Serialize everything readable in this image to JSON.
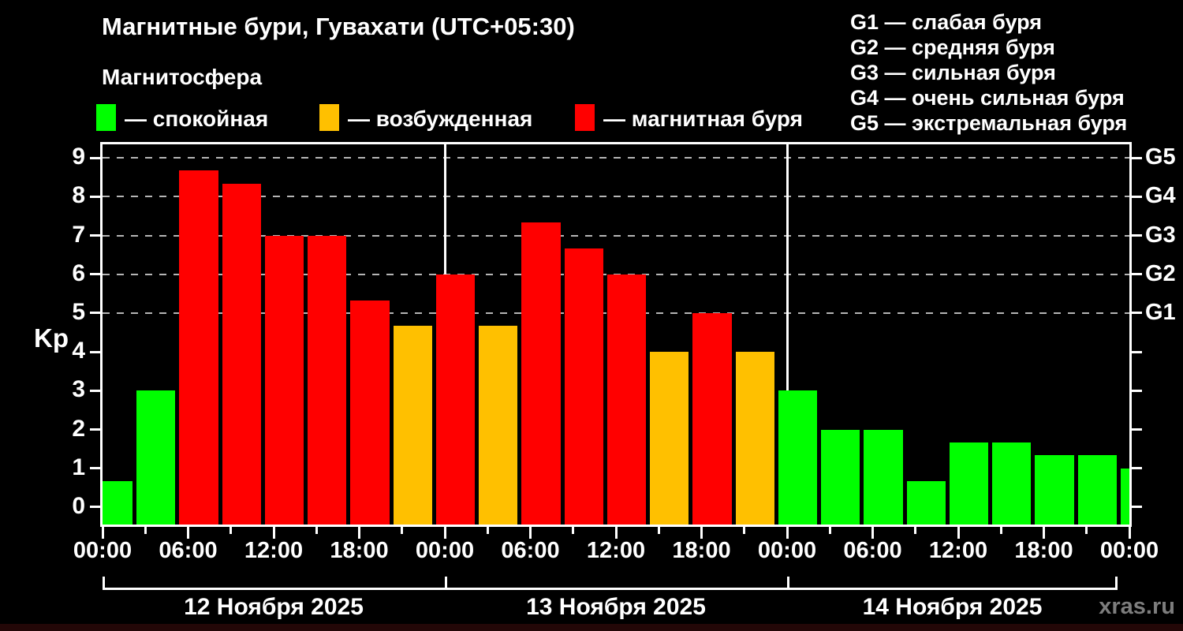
{
  "page": {
    "title": "Магнитные бури, Гувахати (UTC+05:30)",
    "subtitle": "Магнитосфера",
    "watermark": "xras.ru"
  },
  "legend": {
    "quiet": {
      "label": "— спокойная",
      "color": "#00ff00"
    },
    "excited": {
      "label": "— возбужденная",
      "color": "#ffc000"
    },
    "storm": {
      "label": "— магнитная буря",
      "color": "#ff0000"
    }
  },
  "storm_levels": [
    {
      "label": "G1 — слабая буря"
    },
    {
      "label": "G2 — средняя буря"
    },
    {
      "label": "G3 — сильная буря"
    },
    {
      "label": "G4 — очень сильная буря"
    },
    {
      "label": "G5 — экстремальная буря"
    }
  ],
  "chart_data": {
    "type": "bar",
    "title": "Магнитные бури, Гувахати (UTC+05:30)",
    "ylabel": "Kp",
    "ylim": [
      -0.45,
      9.35
    ],
    "yticks": [
      0,
      1,
      2,
      3,
      4,
      5,
      6,
      7,
      8,
      9
    ],
    "grid_levels": [
      5,
      6,
      7,
      8,
      9
    ],
    "right_axis_labels": [
      {
        "level": 5,
        "label": "G1"
      },
      {
        "level": 6,
        "label": "G2"
      },
      {
        "level": 7,
        "label": "G3"
      },
      {
        "level": 8,
        "label": "G4"
      },
      {
        "level": 9,
        "label": "G5"
      }
    ],
    "bar_interval_hours": 3,
    "bar_offset_hours": -0.75,
    "x_label_cycle": [
      "00:00",
      "06:00",
      "12:00",
      "18:00"
    ],
    "state_thresholds": {
      "excited_min": 4,
      "storm_min": 5
    },
    "bar_colors_by_state": {
      "quiet": "#00ff00",
      "excited": "#ffc000",
      "storm": "#ff0000"
    },
    "days": [
      {
        "date": "12 Ноября 2025",
        "kp": [
          0.67,
          3,
          8.67,
          8.33,
          7,
          7,
          5.33,
          4.67
        ]
      },
      {
        "date": "13 Ноября 2025",
        "kp": [
          6,
          4.67,
          7.33,
          6.67,
          6,
          4,
          5,
          4
        ]
      },
      {
        "date": "14 Ноября 2025",
        "kp": [
          3,
          2,
          2,
          0.67,
          1.67,
          1.67,
          1.33,
          1.33
        ]
      }
    ],
    "partial_next_day_kp": 1,
    "grid": true,
    "legend_position": "top"
  }
}
